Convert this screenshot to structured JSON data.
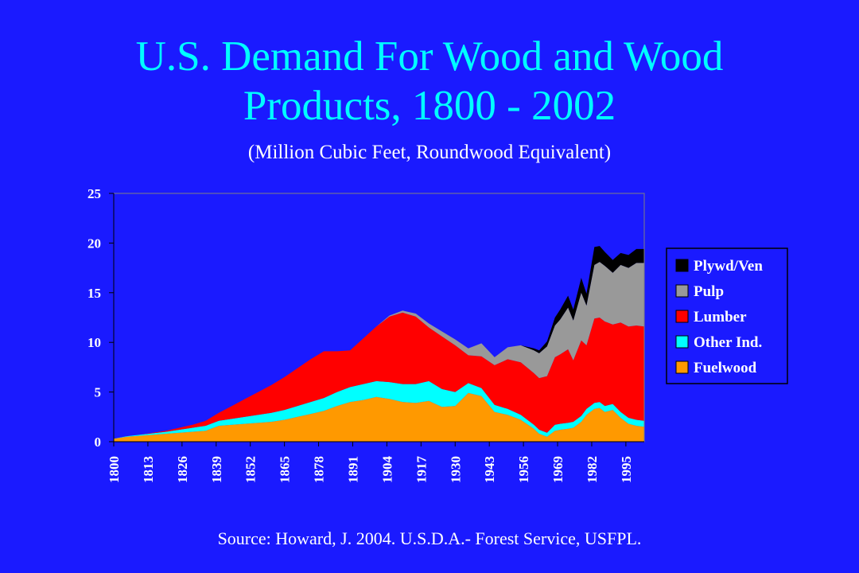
{
  "slide": {
    "title_line1": "U.S. Demand For Wood and Wood",
    "title_line2": "Products, 1800 - 2002",
    "subtitle": "(Million Cubic Feet, Roundwood Equivalent)",
    "source": "Source:  Howard, J. 2004. U.S.D.A.- Forest Service, USFPL."
  },
  "colors": {
    "background": "#1a1aff",
    "title": "#00ffff",
    "text": "#ffffff",
    "plot_background": "#1a1aff"
  },
  "chart_data": {
    "type": "area",
    "stacked": true,
    "title": "U.S. Demand For Wood and Wood Products, 1800 - 2002",
    "subtitle": "(Million Cubic Feet, Roundwood Equivalent)",
    "xlabel": "",
    "ylabel": "",
    "ylim": [
      0,
      25
    ],
    "yticks": [
      0,
      5,
      10,
      15,
      20,
      25
    ],
    "xticks": [
      "1800",
      "1813",
      "1826",
      "1839",
      "1852",
      "1865",
      "1878",
      "1891",
      "1904",
      "1917",
      "1930",
      "1943",
      "1956",
      "1969",
      "1982",
      "1995"
    ],
    "xlim": [
      1800,
      2002
    ],
    "grid": false,
    "legend_position": "right",
    "x": [
      1800,
      1805,
      1810,
      1815,
      1820,
      1825,
      1830,
      1835,
      1840,
      1845,
      1850,
      1855,
      1860,
      1865,
      1870,
      1875,
      1880,
      1885,
      1890,
      1895,
      1900,
      1905,
      1910,
      1915,
      1920,
      1925,
      1930,
      1935,
      1940,
      1945,
      1950,
      1955,
      1960,
      1962,
      1965,
      1968,
      1970,
      1973,
      1975,
      1978,
      1980,
      1983,
      1985,
      1987,
      1990,
      1993,
      1996,
      1999,
      2002
    ],
    "series": [
      {
        "name": "Fuelwood",
        "color": "#ff9900",
        "values": [
          0.3,
          0.5,
          0.6,
          0.7,
          0.8,
          0.9,
          1.0,
          1.1,
          1.6,
          1.7,
          1.8,
          1.9,
          2.0,
          2.2,
          2.5,
          2.8,
          3.1,
          3.6,
          4.0,
          4.2,
          4.5,
          4.3,
          4.0,
          3.9,
          4.1,
          3.5,
          3.6,
          4.9,
          4.6,
          3.0,
          2.7,
          2.2,
          1.3,
          0.8,
          0.5,
          1.1,
          1.2,
          1.3,
          1.4,
          2.0,
          2.7,
          3.3,
          3.4,
          3.0,
          3.2,
          2.4,
          1.8,
          1.6,
          1.5
        ]
      },
      {
        "name": "Other Ind.",
        "color": "#00ffff",
        "values": [
          0.0,
          0.05,
          0.1,
          0.15,
          0.2,
          0.3,
          0.4,
          0.5,
          0.5,
          0.6,
          0.7,
          0.8,
          0.9,
          1.0,
          1.1,
          1.2,
          1.3,
          1.4,
          1.5,
          1.6,
          1.6,
          1.7,
          1.8,
          1.9,
          2.0,
          1.8,
          1.4,
          1.0,
          0.8,
          0.7,
          0.6,
          0.5,
          0.4,
          0.4,
          0.4,
          0.6,
          0.6,
          0.6,
          0.6,
          0.6,
          0.6,
          0.6,
          0.6,
          0.6,
          0.6,
          0.6,
          0.6,
          0.6,
          0.6
        ]
      },
      {
        "name": "Lumber",
        "color": "#ff0000",
        "values": [
          0.0,
          0.0,
          0.0,
          0.05,
          0.1,
          0.2,
          0.3,
          0.5,
          0.8,
          1.3,
          1.8,
          2.3,
          2.8,
          3.3,
          3.8,
          4.3,
          4.7,
          4.1,
          3.7,
          4.6,
          5.5,
          6.6,
          7.2,
          6.8,
          5.4,
          5.3,
          4.7,
          2.8,
          3.2,
          4.0,
          5.0,
          5.3,
          5.2,
          5.2,
          5.7,
          6.8,
          7.0,
          7.4,
          6.2,
          7.6,
          6.4,
          8.5,
          8.5,
          8.5,
          8.0,
          9.0,
          9.2,
          9.5,
          9.5
        ]
      },
      {
        "name": "Pulp",
        "color": "#999999",
        "values": [
          0.0,
          0.0,
          0.0,
          0.0,
          0.0,
          0.0,
          0.0,
          0.0,
          0.0,
          0.0,
          0.0,
          0.0,
          0.0,
          0.0,
          0.0,
          0.0,
          0.0,
          0.0,
          0.0,
          0.0,
          0.0,
          0.1,
          0.2,
          0.3,
          0.4,
          0.5,
          0.6,
          0.7,
          1.3,
          0.8,
          1.2,
          1.7,
          2.3,
          2.5,
          3.0,
          3.2,
          3.5,
          4.2,
          4.0,
          4.8,
          4.0,
          5.4,
          5.6,
          5.6,
          5.2,
          5.8,
          5.9,
          6.3,
          6.4
        ]
      },
      {
        "name": "Plywd/Ven",
        "color": "#000000",
        "values": [
          0.0,
          0.0,
          0.0,
          0.0,
          0.0,
          0.0,
          0.0,
          0.0,
          0.0,
          0.0,
          0.0,
          0.0,
          0.0,
          0.0,
          0.0,
          0.0,
          0.0,
          0.0,
          0.0,
          0.0,
          0.0,
          0.0,
          0.0,
          0.0,
          0.0,
          0.0,
          0.0,
          0.0,
          0.0,
          0.0,
          0.0,
          0.0,
          0.2,
          0.3,
          0.5,
          0.8,
          1.0,
          1.2,
          1.1,
          1.5,
          1.2,
          1.8,
          1.6,
          1.4,
          1.3,
          1.2,
          1.3,
          1.4,
          1.4
        ]
      }
    ],
    "legend_order": [
      "Plywd/Ven",
      "Pulp",
      "Lumber",
      "Other Ind.",
      "Fuelwood"
    ]
  }
}
